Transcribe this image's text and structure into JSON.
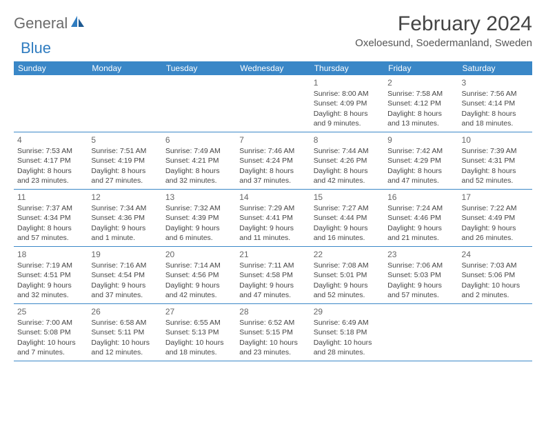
{
  "logo": {
    "text1": "General",
    "text2": "Blue"
  },
  "title": "February 2024",
  "location": "Oxeloesund, Soedermanland, Sweden",
  "colors": {
    "header_bg": "#3a87c7",
    "header_text": "#ffffff",
    "border": "#3a87c7",
    "logo_gray": "#6b6b6b",
    "logo_blue": "#2f7cc0"
  },
  "dayNames": [
    "Sunday",
    "Monday",
    "Tuesday",
    "Wednesday",
    "Thursday",
    "Friday",
    "Saturday"
  ],
  "weeks": [
    [
      {
        "n": "",
        "lines": []
      },
      {
        "n": "",
        "lines": []
      },
      {
        "n": "",
        "lines": []
      },
      {
        "n": "",
        "lines": []
      },
      {
        "n": "1",
        "lines": [
          "Sunrise: 8:00 AM",
          "Sunset: 4:09 PM",
          "Daylight: 8 hours",
          "and 9 minutes."
        ]
      },
      {
        "n": "2",
        "lines": [
          "Sunrise: 7:58 AM",
          "Sunset: 4:12 PM",
          "Daylight: 8 hours",
          "and 13 minutes."
        ]
      },
      {
        "n": "3",
        "lines": [
          "Sunrise: 7:56 AM",
          "Sunset: 4:14 PM",
          "Daylight: 8 hours",
          "and 18 minutes."
        ]
      }
    ],
    [
      {
        "n": "4",
        "lines": [
          "Sunrise: 7:53 AM",
          "Sunset: 4:17 PM",
          "Daylight: 8 hours",
          "and 23 minutes."
        ]
      },
      {
        "n": "5",
        "lines": [
          "Sunrise: 7:51 AM",
          "Sunset: 4:19 PM",
          "Daylight: 8 hours",
          "and 27 minutes."
        ]
      },
      {
        "n": "6",
        "lines": [
          "Sunrise: 7:49 AM",
          "Sunset: 4:21 PM",
          "Daylight: 8 hours",
          "and 32 minutes."
        ]
      },
      {
        "n": "7",
        "lines": [
          "Sunrise: 7:46 AM",
          "Sunset: 4:24 PM",
          "Daylight: 8 hours",
          "and 37 minutes."
        ]
      },
      {
        "n": "8",
        "lines": [
          "Sunrise: 7:44 AM",
          "Sunset: 4:26 PM",
          "Daylight: 8 hours",
          "and 42 minutes."
        ]
      },
      {
        "n": "9",
        "lines": [
          "Sunrise: 7:42 AM",
          "Sunset: 4:29 PM",
          "Daylight: 8 hours",
          "and 47 minutes."
        ]
      },
      {
        "n": "10",
        "lines": [
          "Sunrise: 7:39 AM",
          "Sunset: 4:31 PM",
          "Daylight: 8 hours",
          "and 52 minutes."
        ]
      }
    ],
    [
      {
        "n": "11",
        "lines": [
          "Sunrise: 7:37 AM",
          "Sunset: 4:34 PM",
          "Daylight: 8 hours",
          "and 57 minutes."
        ]
      },
      {
        "n": "12",
        "lines": [
          "Sunrise: 7:34 AM",
          "Sunset: 4:36 PM",
          "Daylight: 9 hours",
          "and 1 minute."
        ]
      },
      {
        "n": "13",
        "lines": [
          "Sunrise: 7:32 AM",
          "Sunset: 4:39 PM",
          "Daylight: 9 hours",
          "and 6 minutes."
        ]
      },
      {
        "n": "14",
        "lines": [
          "Sunrise: 7:29 AM",
          "Sunset: 4:41 PM",
          "Daylight: 9 hours",
          "and 11 minutes."
        ]
      },
      {
        "n": "15",
        "lines": [
          "Sunrise: 7:27 AM",
          "Sunset: 4:44 PM",
          "Daylight: 9 hours",
          "and 16 minutes."
        ]
      },
      {
        "n": "16",
        "lines": [
          "Sunrise: 7:24 AM",
          "Sunset: 4:46 PM",
          "Daylight: 9 hours",
          "and 21 minutes."
        ]
      },
      {
        "n": "17",
        "lines": [
          "Sunrise: 7:22 AM",
          "Sunset: 4:49 PM",
          "Daylight: 9 hours",
          "and 26 minutes."
        ]
      }
    ],
    [
      {
        "n": "18",
        "lines": [
          "Sunrise: 7:19 AM",
          "Sunset: 4:51 PM",
          "Daylight: 9 hours",
          "and 32 minutes."
        ]
      },
      {
        "n": "19",
        "lines": [
          "Sunrise: 7:16 AM",
          "Sunset: 4:54 PM",
          "Daylight: 9 hours",
          "and 37 minutes."
        ]
      },
      {
        "n": "20",
        "lines": [
          "Sunrise: 7:14 AM",
          "Sunset: 4:56 PM",
          "Daylight: 9 hours",
          "and 42 minutes."
        ]
      },
      {
        "n": "21",
        "lines": [
          "Sunrise: 7:11 AM",
          "Sunset: 4:58 PM",
          "Daylight: 9 hours",
          "and 47 minutes."
        ]
      },
      {
        "n": "22",
        "lines": [
          "Sunrise: 7:08 AM",
          "Sunset: 5:01 PM",
          "Daylight: 9 hours",
          "and 52 minutes."
        ]
      },
      {
        "n": "23",
        "lines": [
          "Sunrise: 7:06 AM",
          "Sunset: 5:03 PM",
          "Daylight: 9 hours",
          "and 57 minutes."
        ]
      },
      {
        "n": "24",
        "lines": [
          "Sunrise: 7:03 AM",
          "Sunset: 5:06 PM",
          "Daylight: 10 hours",
          "and 2 minutes."
        ]
      }
    ],
    [
      {
        "n": "25",
        "lines": [
          "Sunrise: 7:00 AM",
          "Sunset: 5:08 PM",
          "Daylight: 10 hours",
          "and 7 minutes."
        ]
      },
      {
        "n": "26",
        "lines": [
          "Sunrise: 6:58 AM",
          "Sunset: 5:11 PM",
          "Daylight: 10 hours",
          "and 12 minutes."
        ]
      },
      {
        "n": "27",
        "lines": [
          "Sunrise: 6:55 AM",
          "Sunset: 5:13 PM",
          "Daylight: 10 hours",
          "and 18 minutes."
        ]
      },
      {
        "n": "28",
        "lines": [
          "Sunrise: 6:52 AM",
          "Sunset: 5:15 PM",
          "Daylight: 10 hours",
          "and 23 minutes."
        ]
      },
      {
        "n": "29",
        "lines": [
          "Sunrise: 6:49 AM",
          "Sunset: 5:18 PM",
          "Daylight: 10 hours",
          "and 28 minutes."
        ]
      },
      {
        "n": "",
        "lines": []
      },
      {
        "n": "",
        "lines": []
      }
    ]
  ]
}
